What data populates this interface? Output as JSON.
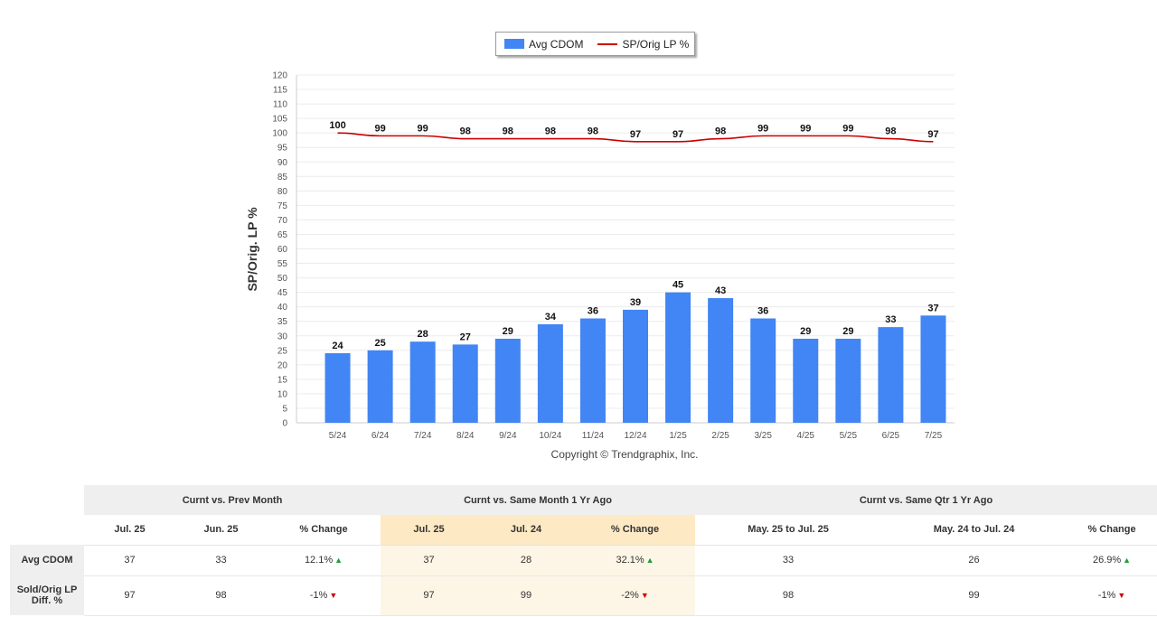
{
  "chart_data": {
    "type": "bar",
    "categories": [
      "5/24",
      "6/24",
      "7/24",
      "8/24",
      "9/24",
      "10/24",
      "11/24",
      "12/24",
      "1/25",
      "2/25",
      "3/25",
      "4/25",
      "5/25",
      "6/25",
      "7/25"
    ],
    "series": [
      {
        "name": "Avg CDOM",
        "type": "bar",
        "color": "#4285f4",
        "values": [
          24,
          25,
          28,
          27,
          29,
          34,
          36,
          39,
          45,
          43,
          36,
          29,
          29,
          33,
          37
        ]
      },
      {
        "name": "SP/Orig LP %",
        "type": "line",
        "color": "#cc0000",
        "values": [
          100,
          99,
          99,
          98,
          98,
          98,
          98,
          97,
          97,
          98,
          99,
          99,
          99,
          98,
          97
        ]
      }
    ],
    "ylabel": "SP/Orig. LP %",
    "ylim": [
      0,
      120
    ],
    "yticks": [
      0,
      5,
      10,
      15,
      20,
      25,
      30,
      35,
      40,
      45,
      50,
      55,
      60,
      65,
      70,
      75,
      80,
      85,
      90,
      95,
      100,
      105,
      110,
      115,
      120
    ],
    "grid": true,
    "legend_position": "top"
  },
  "copyright": "Copyright © Trendgraphix, Inc.",
  "table": {
    "groups": [
      "Curnt vs. Prev Month",
      "Curnt vs. Same Month 1 Yr Ago",
      "Curnt vs. Same Qtr 1 Yr Ago"
    ],
    "columns": [
      "Jul. 25",
      "Jun. 25",
      "% Change",
      "Jul. 25",
      "Jul. 24",
      "% Change",
      "May. 25 to Jul. 25",
      "May. 24 to Jul. 24",
      "% Change"
    ],
    "rows": [
      {
        "label": "Avg CDOM",
        "cells": [
          "37",
          "33",
          "12.1%",
          "37",
          "28",
          "32.1%",
          "33",
          "26",
          "26.9%"
        ]
      },
      {
        "label": "Sold/Orig LP Diff. %",
        "cells": [
          "97",
          "98",
          "-1%",
          "97",
          "99",
          "-2%",
          "98",
          "99",
          "-1%"
        ]
      }
    ],
    "arrows": {
      "up": "▲",
      "down": "▼"
    }
  }
}
